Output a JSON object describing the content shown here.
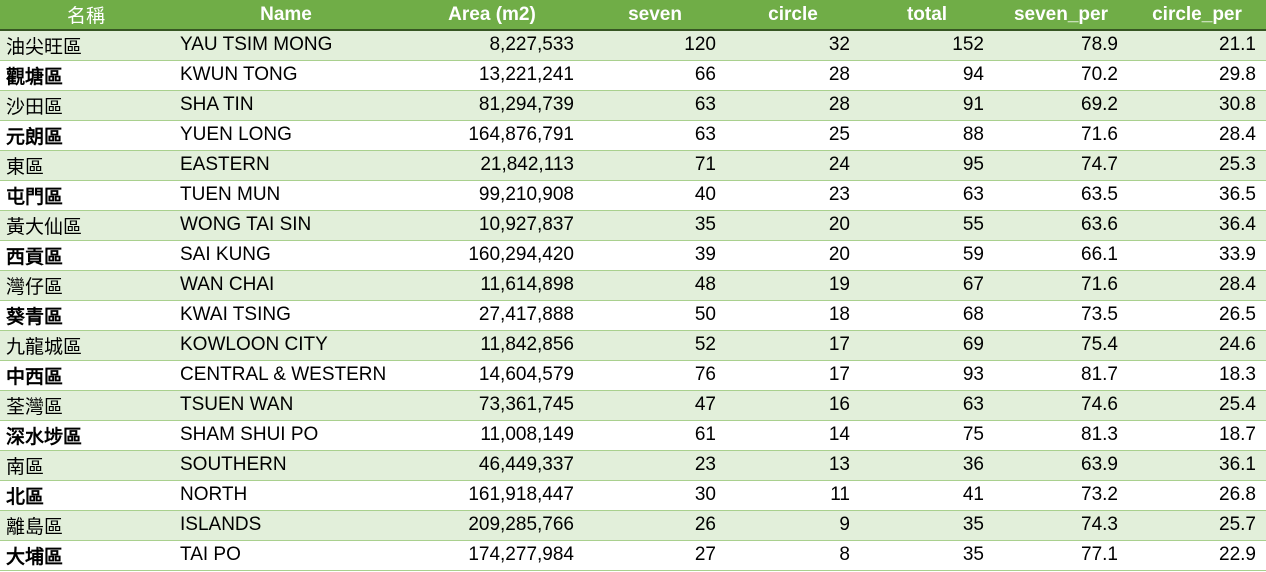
{
  "colors": {
    "header_bg": "#70ad47",
    "header_text": "#ffffff",
    "band_row": "#e2efda",
    "plain_row": "#ffffff",
    "row_rule": "#a9d08e"
  },
  "table": {
    "headers": [
      "名稱",
      "Name",
      "Area (m2)",
      "seven",
      "circle",
      "total",
      "seven_per",
      "circle_per"
    ],
    "rows": [
      [
        "油尖旺區",
        "YAU TSIM MONG",
        "8,227,533",
        "120",
        "32",
        "152",
        "78.9",
        "21.1"
      ],
      [
        "觀塘區",
        "KWUN TONG",
        "13,221,241",
        "66",
        "28",
        "94",
        "70.2",
        "29.8"
      ],
      [
        "沙田區",
        "SHA TIN",
        "81,294,739",
        "63",
        "28",
        "91",
        "69.2",
        "30.8"
      ],
      [
        "元朗區",
        "YUEN LONG",
        "164,876,791",
        "63",
        "25",
        "88",
        "71.6",
        "28.4"
      ],
      [
        "東區",
        "EASTERN",
        "21,842,113",
        "71",
        "24",
        "95",
        "74.7",
        "25.3"
      ],
      [
        "屯門區",
        "TUEN MUN",
        "99,210,908",
        "40",
        "23",
        "63",
        "63.5",
        "36.5"
      ],
      [
        "黃大仙區",
        "WONG TAI SIN",
        "10,927,837",
        "35",
        "20",
        "55",
        "63.6",
        "36.4"
      ],
      [
        "西貢區",
        "SAI KUNG",
        "160,294,420",
        "39",
        "20",
        "59",
        "66.1",
        "33.9"
      ],
      [
        "灣仔區",
        "WAN CHAI",
        "11,614,898",
        "48",
        "19",
        "67",
        "71.6",
        "28.4"
      ],
      [
        "葵青區",
        "KWAI TSING",
        "27,417,888",
        "50",
        "18",
        "68",
        "73.5",
        "26.5"
      ],
      [
        "九龍城區",
        "KOWLOON CITY",
        "11,842,856",
        "52",
        "17",
        "69",
        "75.4",
        "24.6"
      ],
      [
        "中西區",
        "CENTRAL & WESTERN",
        "14,604,579",
        "76",
        "17",
        "93",
        "81.7",
        "18.3"
      ],
      [
        "荃灣區",
        "TSUEN WAN",
        "73,361,745",
        "47",
        "16",
        "63",
        "74.6",
        "25.4"
      ],
      [
        "深水埗區",
        "SHAM SHUI PO",
        "11,008,149",
        "61",
        "14",
        "75",
        "81.3",
        "18.7"
      ],
      [
        "南區",
        "SOUTHERN",
        "46,449,337",
        "23",
        "13",
        "36",
        "63.9",
        "36.1"
      ],
      [
        "北區",
        "NORTH",
        "161,918,447",
        "30",
        "11",
        "41",
        "73.2",
        "26.8"
      ],
      [
        "離島區",
        "ISLANDS",
        "209,285,766",
        "26",
        "9",
        "35",
        "74.3",
        "25.7"
      ],
      [
        "大埔區",
        "TAI PO",
        "174,277,984",
        "27",
        "8",
        "35",
        "77.1",
        "22.9"
      ]
    ]
  }
}
